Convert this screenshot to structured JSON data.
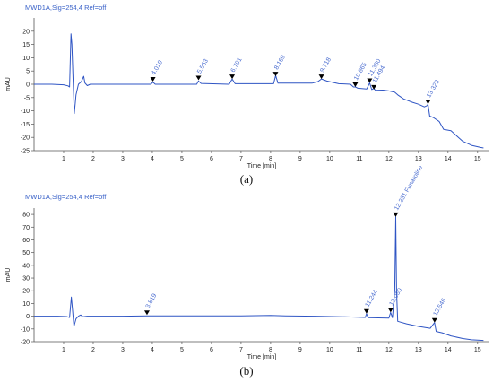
{
  "chart_data": [
    {
      "type": "line",
      "signal_label": "MWD1A,Sig=254,4 Ref=off",
      "ylabel": "mAU",
      "xlabel": "Time [min]",
      "caption": "(a)",
      "xlim": [
        0,
        15.4
      ],
      "ylim": [
        -25,
        25
      ],
      "x_ticks": [
        "1",
        "2",
        "3",
        "4",
        "5",
        "6",
        "7",
        "8",
        "9",
        "10",
        "11",
        "12",
        "13",
        "14",
        "15"
      ],
      "y_ticks": [
        "-25",
        "-20",
        "-15",
        "-10",
        "-5",
        "0",
        "5",
        "10",
        "15",
        "20"
      ],
      "peaks": [
        {
          "label": "4.019",
          "x": 4.019,
          "y": 1.0
        },
        {
          "label": "5.563",
          "x": 5.563,
          "y": 1.5
        },
        {
          "label": "6.701",
          "x": 6.701,
          "y": 2.0
        },
        {
          "label": "8.169",
          "x": 8.169,
          "y": 3.0
        },
        {
          "label": "9.718",
          "x": 9.718,
          "y": 2.0
        },
        {
          "label": "10.865",
          "x": 10.865,
          "y": -1.0
        },
        {
          "label": "11.350",
          "x": 11.35,
          "y": 0.5
        },
        {
          "label": "11.494",
          "x": 11.494,
          "y": -2.0
        },
        {
          "label": "13.323",
          "x": 13.323,
          "y": -7.5
        }
      ],
      "trace": [
        [
          0.0,
          0.0
        ],
        [
          0.6,
          0.0
        ],
        [
          1.0,
          -0.2
        ],
        [
          1.15,
          -0.6
        ],
        [
          1.2,
          -1.0
        ],
        [
          1.25,
          19.0
        ],
        [
          1.28,
          15.0
        ],
        [
          1.32,
          2.0
        ],
        [
          1.36,
          -11.0
        ],
        [
          1.42,
          -4.0
        ],
        [
          1.5,
          0.0
        ],
        [
          1.6,
          1.0
        ],
        [
          1.68,
          3.0
        ],
        [
          1.72,
          0.5
        ],
        [
          1.8,
          -0.5
        ],
        [
          1.9,
          0.0
        ],
        [
          2.5,
          0.0
        ],
        [
          3.5,
          0.0
        ],
        [
          3.95,
          0.0
        ],
        [
          4.02,
          0.8
        ],
        [
          4.1,
          0.0
        ],
        [
          5.5,
          0.0
        ],
        [
          5.56,
          1.2
        ],
        [
          5.65,
          0.3
        ],
        [
          6.6,
          0.0
        ],
        [
          6.7,
          2.0
        ],
        [
          6.8,
          0.2
        ],
        [
          8.1,
          0.2
        ],
        [
          8.17,
          3.3
        ],
        [
          8.25,
          0.4
        ],
        [
          9.4,
          0.4
        ],
        [
          9.6,
          1.0
        ],
        [
          9.72,
          2.0
        ],
        [
          9.9,
          1.2
        ],
        [
          10.3,
          0.2
        ],
        [
          10.7,
          0.0
        ],
        [
          10.8,
          -1.0
        ],
        [
          10.87,
          -1.0
        ],
        [
          10.95,
          -1.5
        ],
        [
          11.25,
          -1.8
        ],
        [
          11.35,
          0.5
        ],
        [
          11.42,
          -2.0
        ],
        [
          11.49,
          -1.6
        ],
        [
          11.55,
          -2.3
        ],
        [
          11.8,
          -2.2
        ],
        [
          12.0,
          -2.5
        ],
        [
          12.2,
          -3.0
        ],
        [
          12.3,
          -4.0
        ],
        [
          12.5,
          -5.5
        ],
        [
          12.8,
          -6.8
        ],
        [
          13.0,
          -7.5
        ],
        [
          13.2,
          -8.5
        ],
        [
          13.3,
          -8.0
        ],
        [
          13.32,
          -7.4
        ],
        [
          13.38,
          -12.0
        ],
        [
          13.5,
          -12.5
        ],
        [
          13.7,
          -14.0
        ],
        [
          13.85,
          -17.0
        ],
        [
          14.1,
          -17.5
        ],
        [
          14.3,
          -19.5
        ],
        [
          14.5,
          -21.5
        ],
        [
          14.8,
          -23.0
        ],
        [
          15.1,
          -23.8
        ],
        [
          15.2,
          -24.0
        ]
      ]
    },
    {
      "type": "line",
      "signal_label": "MWD1A,Sig=254,4 Ref=off",
      "ylabel": "mAU",
      "xlabel": "Time [min]",
      "caption": "(b)",
      "xlim": [
        0,
        15.4
      ],
      "ylim": [
        -20,
        85
      ],
      "x_ticks": [
        "1",
        "2",
        "3",
        "4",
        "5",
        "6",
        "7",
        "8",
        "9",
        "10",
        "11",
        "12",
        "13",
        "14",
        "15"
      ],
      "y_ticks": [
        "-20",
        "-10",
        "0",
        "10",
        "20",
        "30",
        "40",
        "50",
        "60",
        "70",
        "80"
      ],
      "peaks": [
        {
          "label": "3.819",
          "x": 3.819,
          "y": 1.0
        },
        {
          "label": "11.244",
          "x": 11.244,
          "y": 2.0
        },
        {
          "label": "12.060",
          "x": 12.06,
          "y": 3.0
        },
        {
          "label": "12.231 Funaroline",
          "x": 12.231,
          "y": 78.0
        },
        {
          "label": "13.546",
          "x": 13.546,
          "y": -5.0
        }
      ],
      "trace": [
        [
          0.0,
          0.0
        ],
        [
          0.8,
          0.0
        ],
        [
          1.1,
          -0.3
        ],
        [
          1.2,
          -1.0
        ],
        [
          1.26,
          15.0
        ],
        [
          1.3,
          5.0
        ],
        [
          1.35,
          -8.0
        ],
        [
          1.42,
          -2.0
        ],
        [
          1.5,
          0.0
        ],
        [
          1.58,
          1.0
        ],
        [
          1.65,
          -0.5
        ],
        [
          1.8,
          0.0
        ],
        [
          3.0,
          0.0
        ],
        [
          3.82,
          0.2
        ],
        [
          5.0,
          0.2
        ],
        [
          7.0,
          0.3
        ],
        [
          8.0,
          0.6
        ],
        [
          8.5,
          0.2
        ],
        [
          9.5,
          0.0
        ],
        [
          10.5,
          -0.5
        ],
        [
          11.2,
          -1.0
        ],
        [
          11.244,
          2.0
        ],
        [
          11.3,
          -1.2
        ],
        [
          12.0,
          -1.5
        ],
        [
          12.06,
          3.0
        ],
        [
          12.12,
          -1.2
        ],
        [
          12.2,
          20.0
        ],
        [
          12.231,
          78.0
        ],
        [
          12.26,
          20.0
        ],
        [
          12.3,
          -4.0
        ],
        [
          12.6,
          -6.0
        ],
        [
          13.0,
          -8.0
        ],
        [
          13.4,
          -9.5
        ],
        [
          13.546,
          -5.0
        ],
        [
          13.6,
          -12.0
        ],
        [
          13.8,
          -13.0
        ],
        [
          14.1,
          -15.5
        ],
        [
          14.5,
          -17.5
        ],
        [
          14.8,
          -18.5
        ],
        [
          15.2,
          -19.0
        ]
      ]
    }
  ]
}
